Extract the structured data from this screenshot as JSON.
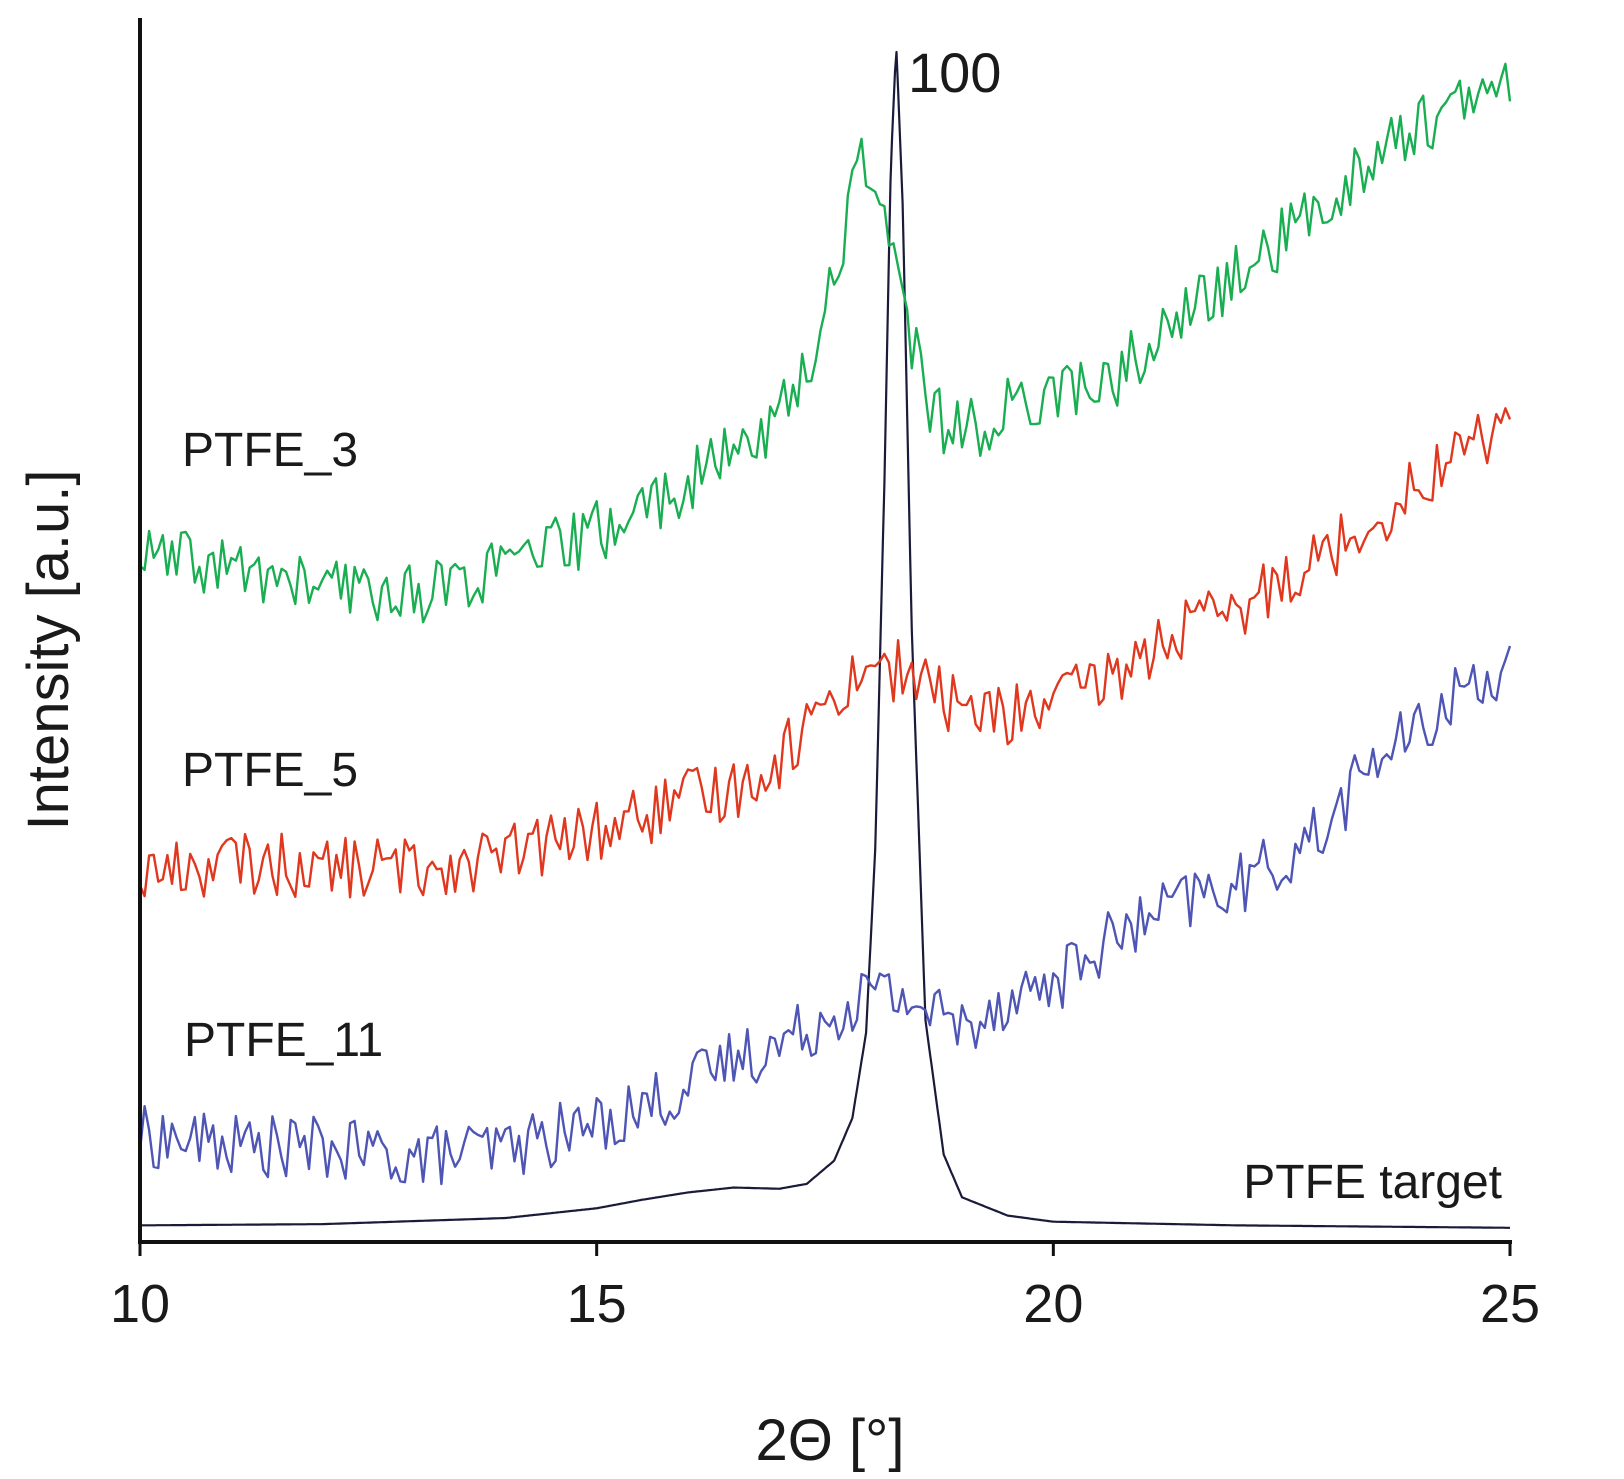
{
  "chart_data": {
    "type": "line",
    "title": "",
    "xlabel": "2Θ [°]",
    "ylabel": "Intensity [a.u.]",
    "xlim": [
      10,
      25
    ],
    "xticks": [
      10,
      15,
      20,
      25
    ],
    "ylim": [
      0,
      100
    ],
    "grid": false,
    "y_ticks_shown": false,
    "annotations": [
      {
        "text": "100",
        "x": 18.3,
        "y": 98
      }
    ],
    "series": [
      {
        "name": "PTFE target",
        "color": "#1a1a3a",
        "x": [
          10,
          12,
          14,
          15,
          15.5,
          16,
          16.5,
          17,
          17.3,
          17.6,
          17.8,
          17.95,
          18.05,
          18.15,
          18.22,
          18.28,
          18.35,
          18.45,
          18.6,
          18.8,
          19,
          19.5,
          20,
          22,
          25
        ],
        "values": [
          1.2,
          1.3,
          1.8,
          2.6,
          3.3,
          3.9,
          4.3,
          4.2,
          4.6,
          6.5,
          10.0,
          17.0,
          32.0,
          62.0,
          88.0,
          98.0,
          85.0,
          50.0,
          18.0,
          7.0,
          3.5,
          2.0,
          1.5,
          1.2,
          1.0
        ]
      },
      {
        "name": "PTFE_11",
        "color": "#4e55b5",
        "x": [
          10,
          11,
          12,
          13,
          14,
          15,
          16,
          16.5,
          17,
          17.5,
          18,
          18.5,
          19,
          19.5,
          20,
          20.5,
          21,
          21.5,
          22,
          22.5,
          23,
          23.5,
          24,
          24.5,
          25
        ],
        "values": [
          8.5,
          7.8,
          7.5,
          6.8,
          7.5,
          9.5,
          12.5,
          15.0,
          16.0,
          18.2,
          20.5,
          19.5,
          17.5,
          20.0,
          21.0,
          24.0,
          26.0,
          28.0,
          29.0,
          31.0,
          34.0,
          39.5,
          41.5,
          45.5,
          47.0
        ]
      },
      {
        "name": "PTFE_5",
        "color": "#e0381e",
        "x": [
          10,
          11,
          12,
          13,
          14,
          15,
          16,
          16.5,
          17,
          17.5,
          18,
          18.5,
          19,
          19.5,
          20,
          20.5,
          21,
          21.5,
          22,
          22.5,
          23,
          23.5,
          24,
          24.5,
          25
        ],
        "values": [
          30.0,
          31.0,
          30.5,
          30.5,
          31.5,
          33.5,
          36.0,
          37.0,
          39.5,
          44.0,
          47.5,
          46.0,
          43.5,
          43.0,
          44.0,
          45.5,
          48.0,
          50.5,
          51.0,
          54.5,
          56.5,
          59.0,
          62.0,
          65.0,
          67.0
        ]
      },
      {
        "name": "PTFE_3",
        "color": "#1aae52",
        "x": [
          10,
          11,
          12,
          13,
          14,
          15,
          16,
          16.5,
          17,
          17.4,
          17.7,
          17.85,
          18.1,
          18.4,
          18.7,
          19,
          19.5,
          20,
          20.5,
          21,
          21.5,
          22,
          22.5,
          23,
          23.5,
          24,
          24.5,
          25
        ],
        "values": [
          56.0,
          55.0,
          53.5,
          53.0,
          55.0,
          58.0,
          62.0,
          64.5,
          67.5,
          73.0,
          82.0,
          89.5,
          86.0,
          75.0,
          67.5,
          66.0,
          68.0,
          70.0,
          69.5,
          73.0,
          76.0,
          79.0,
          82.0,
          85.0,
          89.0,
          91.5,
          93.0,
          94.5
        ]
      }
    ]
  }
}
